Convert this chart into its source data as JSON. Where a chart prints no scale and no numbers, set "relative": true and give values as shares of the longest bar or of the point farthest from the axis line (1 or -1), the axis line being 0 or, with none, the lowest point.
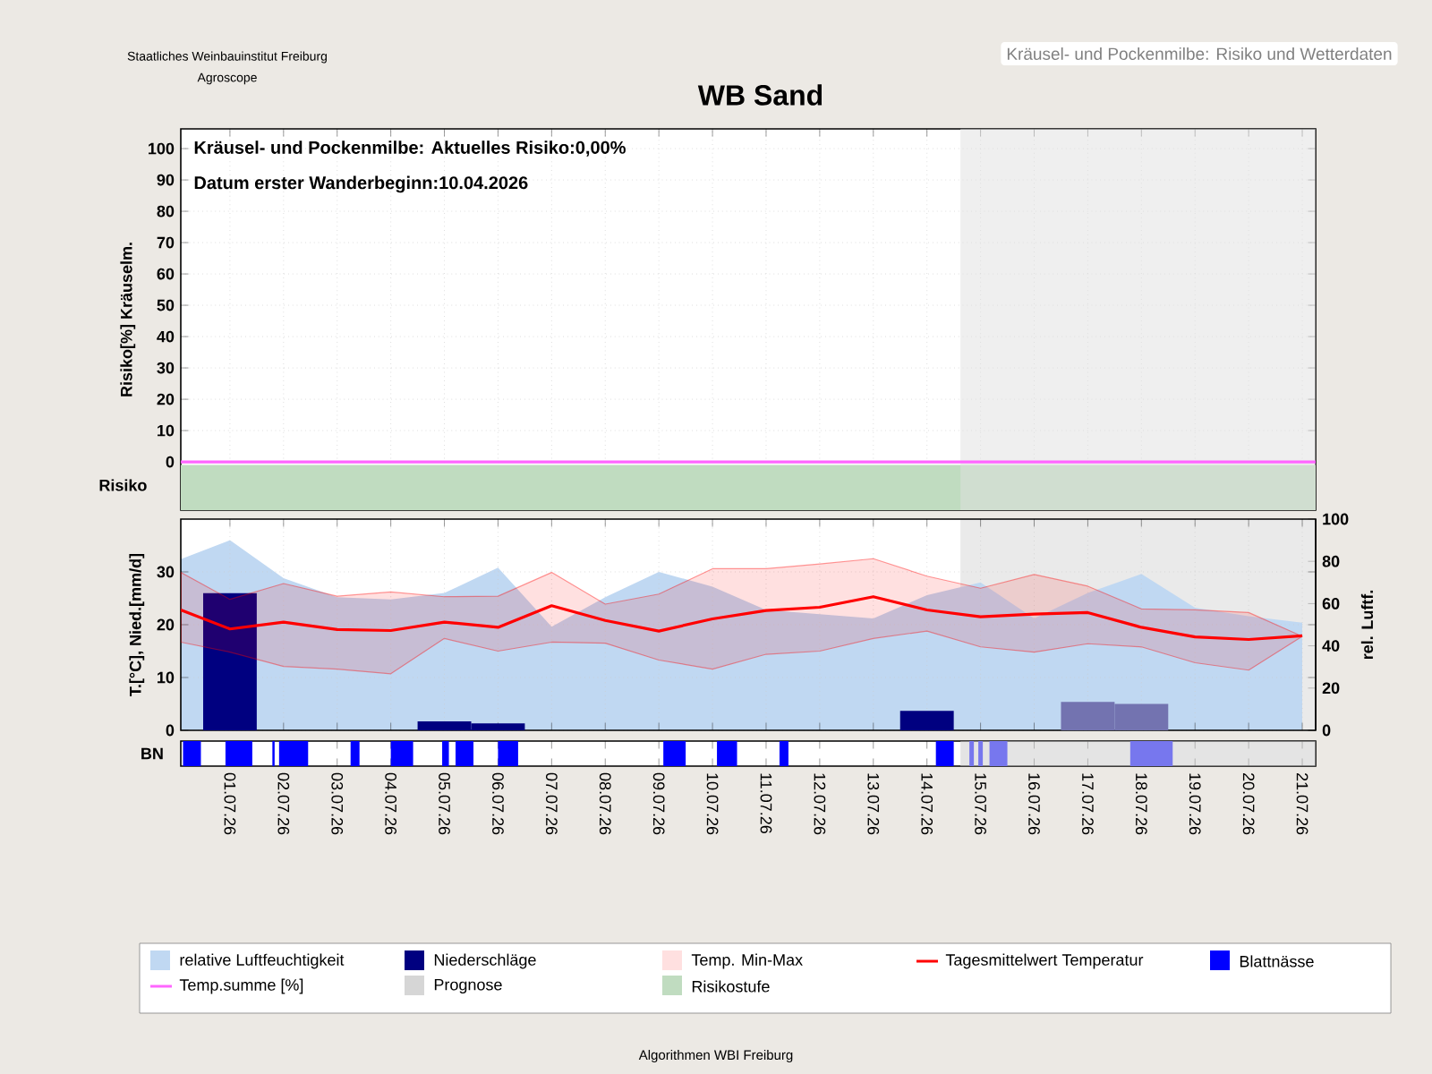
{
  "chart_data": [
    {
      "type": "line",
      "title": "WB Sand",
      "subtitle": "Kräusel- und Pockenmilbe: Risiko und Wetterdaten",
      "ylabel": "Risiko[%] Kräuselm.",
      "annotations": [
        "Kräusel- und Pockenmilbe: Aktuelles Risiko:0,00%",
        "Datum erster Wanderbeginn:10.04.2026",
        "Staatliches Weinbauinstitut Freiburg",
        "Agroscope",
        "Risiko"
      ],
      "series": [
        {
          "name": "Temp.summe [%]",
          "color": "#ff66ff",
          "x": [
            "2026-06-30T02:00",
            "2026-07-21T06:00"
          ],
          "values": [
            0,
            0
          ]
        }
      ],
      "xlim": [
        "2026-06-30T02:00",
        "2026-07-21T06:00"
      ],
      "ylim": [
        -15.4,
        106.3
      ],
      "yticks": [
        0,
        10,
        20,
        30,
        40,
        50,
        60,
        70,
        80,
        90,
        100
      ],
      "xticks": [
        {
          "value": "2026-07-01",
          "label": null
        },
        {
          "value": "2026-07-02",
          "label": null
        },
        {
          "value": "2026-07-03",
          "label": null
        },
        {
          "value": "2026-07-04",
          "label": null
        },
        {
          "value": "2026-07-05",
          "label": null
        },
        {
          "value": "2026-07-06",
          "label": null
        },
        {
          "value": "2026-07-07",
          "label": null
        },
        {
          "value": "2026-07-08",
          "label": null
        },
        {
          "value": "2026-07-09",
          "label": null
        },
        {
          "value": "2026-07-10",
          "label": null
        },
        {
          "value": "2026-07-11",
          "label": null
        },
        {
          "value": "2026-07-12",
          "label": null
        },
        {
          "value": "2026-07-13",
          "label": null
        },
        {
          "value": "2026-07-14",
          "label": null
        },
        {
          "value": "2026-07-15",
          "label": null
        },
        {
          "value": "2026-07-16",
          "label": null
        },
        {
          "value": "2026-07-17",
          "label": null
        },
        {
          "value": "2026-07-18",
          "label": null
        },
        {
          "value": "2026-07-19",
          "label": null
        },
        {
          "value": "2026-07-20",
          "label": null
        },
        {
          "value": "2026-07-21",
          "label": null
        }
      ],
      "bands": [
        {
          "axis": "y",
          "from": -15.4,
          "to": -1,
          "color": "#c0dcc0",
          "label": "Risikostufe"
        },
        {
          "axis": "x",
          "from": "2026-07-14T15:00",
          "to": "2026-07-21T06:00",
          "color": "#dfdfdf"
        }
      ],
      "grid": true,
      "legend": "bottom",
      "tick_labels": "y"
    },
    {
      "type": "line",
      "ylabel": "T.[°C], Nied.[mm/d]",
      "y2label": "rel. Luftf.",
      "annotations": [
        "Temp. Min-Max"
      ],
      "series": [
        {
          "name": "relative Luftfeuchtigkeit",
          "type": "area",
          "axis": "y2",
          "color": "#c0d8f2",
          "x": [
            "2026-06-30T02:00",
            "2026-07-01",
            "2026-07-02",
            "2026-07-03",
            "2026-07-04",
            "2026-07-05",
            "2026-07-06",
            "2026-07-07",
            "2026-07-08",
            "2026-07-09",
            "2026-07-10",
            "2026-07-11",
            "2026-07-12",
            "2026-07-13",
            "2026-07-14",
            "2026-07-15",
            "2026-07-16",
            "2026-07-17",
            "2026-07-18",
            "2026-07-19",
            "2026-07-20",
            "2026-07-21"
          ],
          "values": [
            81,
            90,
            72,
            63,
            62,
            65,
            77,
            49,
            63,
            75,
            68,
            57,
            55,
            53,
            64,
            70,
            53,
            65,
            74,
            58,
            54,
            51
          ]
        },
        {
          "name": "Niederschläge",
          "type": "bar",
          "color": "#000080",
          "colors": [
            "#000080",
            "#000080",
            "#000080",
            "#000080",
            "#7373b0",
            "#7373b0"
          ],
          "x": [
            "2026-07-01",
            "2026-07-05",
            "2026-07-06",
            "2026-07-14",
            "2026-07-17",
            "2026-07-18"
          ],
          "values": [
            26,
            1.7,
            1.3,
            3.7,
            5.4,
            5.0
          ]
        },
        {
          "name": "Tagesmittelwert Temperatur",
          "type": "line",
          "color": "#ff0000",
          "x": [
            "2026-06-30T02:00",
            "2026-07-01",
            "2026-07-02",
            "2026-07-03",
            "2026-07-04",
            "2026-07-05",
            "2026-07-06",
            "2026-07-07",
            "2026-07-08",
            "2026-07-09",
            "2026-07-10",
            "2026-07-11",
            "2026-07-12",
            "2026-07-13",
            "2026-07-14",
            "2026-07-15",
            "2026-07-16",
            "2026-07-17",
            "2026-07-18",
            "2026-07-19",
            "2026-07-20",
            "2026-07-21"
          ],
          "values": [
            22.8,
            19.2,
            20.5,
            19.1,
            18.9,
            20.5,
            19.5,
            23.6,
            20.8,
            18.8,
            21.1,
            22.7,
            23.3,
            25.3,
            22.8,
            21.5,
            22.0,
            22.3,
            19.5,
            17.7,
            17.2,
            17.9
          ],
          "lower": [
            16.7,
            14.8,
            12.1,
            11.6,
            10.7,
            17.4,
            15.0,
            16.7,
            16.5,
            13.3,
            11.6,
            14.4,
            15.0,
            17.4,
            18.8,
            15.8,
            14.8,
            16.4,
            15.8,
            12.8,
            11.4,
            17.8
          ],
          "upper": [
            29.9,
            24.8,
            27.8,
            25.4,
            26.2,
            25.3,
            25.4,
            29.9,
            23.9,
            25.8,
            30.6,
            30.6,
            31.5,
            32.5,
            29.2,
            26.9,
            29.5,
            27.3,
            23.0,
            22.8,
            22.3,
            17.8
          ]
        }
      ],
      "xlim": [
        "2026-06-30T02:00",
        "2026-07-21T06:00"
      ],
      "ylim": [
        0,
        40
      ],
      "yticks": [
        0,
        10,
        20,
        30
      ],
      "y2lim": [
        0,
        100
      ],
      "y2ticks": [
        0,
        20,
        40,
        60,
        80,
        100
      ],
      "xticks": [
        {
          "value": "2026-07-01",
          "label": null
        },
        {
          "value": "2026-07-02",
          "label": null
        },
        {
          "value": "2026-07-03",
          "label": null
        },
        {
          "value": "2026-07-04",
          "label": null
        },
        {
          "value": "2026-07-05",
          "label": null
        },
        {
          "value": "2026-07-06",
          "label": null
        },
        {
          "value": "2026-07-07",
          "label": null
        },
        {
          "value": "2026-07-08",
          "label": null
        },
        {
          "value": "2026-07-09",
          "label": null
        },
        {
          "value": "2026-07-10",
          "label": null
        },
        {
          "value": "2026-07-11",
          "label": null
        },
        {
          "value": "2026-07-12",
          "label": null
        },
        {
          "value": "2026-07-13",
          "label": null
        },
        {
          "value": "2026-07-14",
          "label": null
        },
        {
          "value": "2026-07-15",
          "label": null
        },
        {
          "value": "2026-07-16",
          "label": null
        },
        {
          "value": "2026-07-17",
          "label": null
        },
        {
          "value": "2026-07-18",
          "label": null
        },
        {
          "value": "2026-07-19",
          "label": null
        },
        {
          "value": "2026-07-20",
          "label": null
        },
        {
          "value": "2026-07-21",
          "label": null
        }
      ],
      "bands": [
        {
          "axis": "x",
          "from": "2026-07-14T15:00",
          "to": "2026-07-21T06:00",
          "color": "#d6d6d6",
          "label": "Prognose"
        }
      ],
      "grid": true,
      "legend": "bottom",
      "tick_labels": "y"
    },
    {
      "type": "area",
      "relative": true,
      "ylabel": "BN",
      "annotations": [
        "Algorithmen WBI Freiburg"
      ],
      "series": [
        {
          "name": "Blattnässe",
          "color": "#0000ff",
          "x": [
            "2026-06-30T03:00",
            "2026-06-30T03:00",
            "2026-06-30T11:00",
            "2026-06-30T11:00",
            "2026-06-30T22:00",
            "2026-06-30T22:00",
            "2026-07-01T10:00",
            "2026-07-01T10:00",
            "2026-07-01T19:00",
            "2026-07-01T19:00",
            "2026-07-01T20:00",
            "2026-07-01T20:00",
            "2026-07-01T22:00",
            "2026-07-01T22:00",
            "2026-07-02T11:00",
            "2026-07-02T11:00",
            "2026-07-03T06:00",
            "2026-07-03T06:00",
            "2026-07-03T10:00",
            "2026-07-03T10:00",
            "2026-07-04T00:00",
            "2026-07-04T00:00",
            "2026-07-04T10:00",
            "2026-07-04T10:00",
            "2026-07-04T23:00",
            "2026-07-04T23:00",
            "2026-07-05T02:00",
            "2026-07-05T02:00",
            "2026-07-05T05:00",
            "2026-07-05T05:00",
            "2026-07-05T13:00",
            "2026-07-05T13:00",
            "2026-07-06T00:00",
            "2026-07-06T00:00",
            "2026-07-06T09:00",
            "2026-07-06T09:00",
            "2026-07-09T02:00",
            "2026-07-09T02:00",
            "2026-07-09T12:00",
            "2026-07-09T12:00",
            "2026-07-10T02:00",
            "2026-07-10T02:00",
            "2026-07-10T11:00",
            "2026-07-10T11:00",
            "2026-07-11T06:00",
            "2026-07-11T06:00",
            "2026-07-11T10:00",
            "2026-07-11T10:00",
            "2026-07-14T04:00",
            "2026-07-14T04:00",
            "2026-07-14T12:00",
            "2026-07-14T12:00"
          ],
          "values": [
            0,
            1,
            1,
            0,
            0,
            1,
            1,
            0,
            0,
            1,
            1,
            0,
            0,
            1,
            1,
            0,
            0,
            1,
            1,
            0,
            0,
            1,
            1,
            0,
            0,
            1,
            1,
            0,
            0,
            1,
            1,
            0,
            0,
            1,
            1,
            0,
            0,
            1,
            1,
            0,
            0,
            1,
            1,
            0,
            0,
            1,
            1,
            0,
            0,
            1,
            1,
            0
          ]
        },
        {
          "color": "#7777ee",
          "x": [
            "2026-07-14T19:00",
            "2026-07-14T19:00",
            "2026-07-14T21:00",
            "2026-07-14T21:00",
            "2026-07-14T23:00",
            "2026-07-14T23:00",
            "2026-07-15T01:00",
            "2026-07-15T01:00",
            "2026-07-15T04:00",
            "2026-07-15T04:00",
            "2026-07-15T12:00",
            "2026-07-15T12:00",
            "2026-07-17T19:00",
            "2026-07-17T19:00",
            "2026-07-18T14:00",
            "2026-07-18T14:00"
          ],
          "values": [
            0,
            1,
            1,
            0,
            0,
            1,
            1,
            0,
            0,
            1,
            1,
            0,
            0,
            1,
            1,
            0
          ]
        }
      ],
      "xlim": [
        "2026-06-30T02:00",
        "2026-07-21T06:00"
      ],
      "xticks": [
        {
          "value": "2026-07-01",
          "label": "01.07.26"
        },
        {
          "value": "2026-07-02",
          "label": "02.07.26"
        },
        {
          "value": "2026-07-03",
          "label": "03.07.26"
        },
        {
          "value": "2026-07-04",
          "label": "04.07.26"
        },
        {
          "value": "2026-07-05",
          "label": "05.07.26"
        },
        {
          "value": "2026-07-06",
          "label": "06.07.26"
        },
        {
          "value": "2026-07-07",
          "label": "07.07.26"
        },
        {
          "value": "2026-07-08",
          "label": "08.07.26"
        },
        {
          "value": "2026-07-09",
          "label": "09.07.26"
        },
        {
          "value": "2026-07-10",
          "label": "10.07.26"
        },
        {
          "value": "2026-07-11",
          "label": "11.07.26"
        },
        {
          "value": "2026-07-12",
          "label": "12.07.26"
        },
        {
          "value": "2026-07-13",
          "label": "13.07.26"
        },
        {
          "value": "2026-07-14",
          "label": "14.07.26"
        },
        {
          "value": "2026-07-15",
          "label": "15.07.26"
        },
        {
          "value": "2026-07-16",
          "label": "16.07.26"
        },
        {
          "value": "2026-07-17",
          "label": "17.07.26"
        },
        {
          "value": "2026-07-18",
          "label": "18.07.26"
        },
        {
          "value": "2026-07-19",
          "label": "19.07.26"
        },
        {
          "value": "2026-07-20",
          "label": "20.07.26"
        },
        {
          "value": "2026-07-21",
          "label": "21.07.26"
        }
      ],
      "bands": [
        {
          "axis": "x",
          "from": "2026-07-14T15:00",
          "to": "2026-07-21T06:00",
          "color": "#c9c9c9"
        }
      ],
      "legend": "bottom",
      "tick_labels": "x"
    }
  ]
}
